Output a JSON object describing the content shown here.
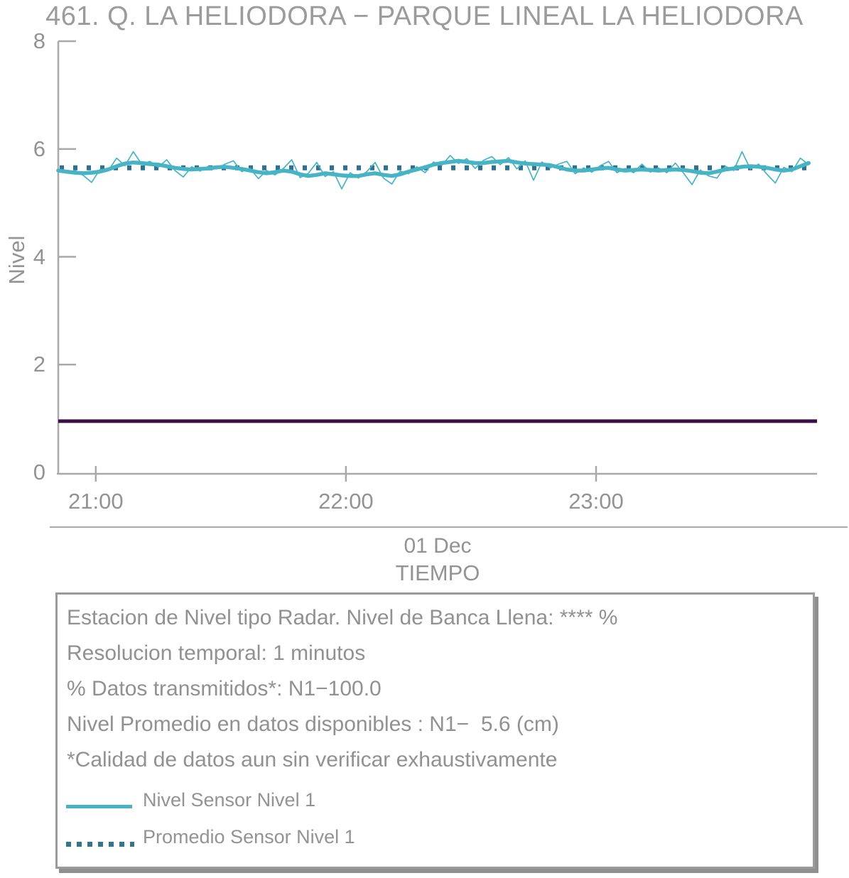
{
  "title": "461. Q. LA HELIODORA − PARQUE LINEAL LA HELIODORA",
  "axes": {
    "y_label": "Nivel",
    "x_label": "TIEMPO",
    "x_date_label": "01 Dec"
  },
  "legend": {
    "info_lines": [
      "Estacion de Nivel tipo Radar. Nivel de Banca Llena: **** %",
      "Resolucion temporal: 1 minutos",
      "% Datos transmitidos*: N1−100.0",
      "Nivel Promedio en datos disponibles : N1−  5.6 (cm)",
      "*Calidad de datos aun sin verificar exhaustivamente"
    ],
    "entries": [
      {
        "label": "Nivel Sensor Nivel 1",
        "style": "solid",
        "color": "#46b4c5"
      },
      {
        "label": "Promedio Sensor Nivel 1",
        "style": "dotted",
        "color": "#35748f"
      }
    ]
  },
  "chart_data": {
    "type": "line",
    "title": "461. Q. LA HELIODORA − PARQUE LINEAL LA HELIODORA",
    "xlabel": "TIEMPO",
    "x_sublabel": "01 Dec",
    "ylabel": "Nivel",
    "ylim": [
      0,
      8
    ],
    "y_ticks": [
      0,
      2,
      4,
      6,
      8
    ],
    "x_ticks": [
      {
        "label": "21:00",
        "minute": 9
      },
      {
        "label": "22:00",
        "minute": 69
      },
      {
        "label": "23:00",
        "minute": 129
      }
    ],
    "x_range_minutes": 182,
    "sample_step_minutes": 2,
    "grid": false,
    "legend_position": "bottom-box",
    "series": [
      {
        "name": "Nivel Sensor Nivel 1",
        "role": "raw",
        "style": "solid-thin",
        "color": "#46b4c5",
        "values": [
          5.62,
          5.55,
          5.6,
          5.51,
          5.38,
          5.62,
          5.6,
          5.83,
          5.69,
          5.95,
          5.72,
          5.77,
          5.66,
          5.8,
          5.6,
          5.48,
          5.67,
          5.59,
          5.68,
          5.63,
          5.72,
          5.78,
          5.58,
          5.64,
          5.45,
          5.6,
          5.52,
          5.64,
          5.8,
          5.47,
          5.55,
          5.75,
          5.49,
          5.58,
          5.26,
          5.56,
          5.46,
          5.58,
          5.75,
          5.46,
          5.35,
          5.59,
          5.54,
          5.67,
          5.56,
          5.76,
          5.7,
          5.88,
          5.73,
          5.82,
          5.64,
          5.79,
          5.86,
          5.71,
          5.84,
          5.63,
          5.78,
          5.42,
          5.76,
          5.65,
          5.72,
          5.77,
          5.54,
          5.65,
          5.57,
          5.69,
          5.77,
          5.56,
          5.64,
          5.56,
          5.72,
          5.57,
          5.65,
          5.56,
          5.74,
          5.55,
          5.34,
          5.61,
          5.5,
          5.46,
          5.68,
          5.6,
          5.95,
          5.63,
          5.72,
          5.53,
          5.37,
          5.66,
          5.58,
          5.83,
          5.71
        ]
      },
      {
        "name": "Nivel Sensor Nivel 1",
        "role": "smoothed",
        "style": "solid-thick",
        "color": "#46b4c5",
        "values": [
          5.6,
          5.58,
          5.56,
          5.55,
          5.56,
          5.58,
          5.62,
          5.68,
          5.73,
          5.75,
          5.74,
          5.72,
          5.71,
          5.68,
          5.65,
          5.63,
          5.62,
          5.63,
          5.64,
          5.66,
          5.67,
          5.65,
          5.63,
          5.6,
          5.57,
          5.55,
          5.57,
          5.6,
          5.58,
          5.53,
          5.5,
          5.52,
          5.55,
          5.53,
          5.51,
          5.5,
          5.5,
          5.53,
          5.55,
          5.52,
          5.5,
          5.53,
          5.58,
          5.62,
          5.66,
          5.71,
          5.74,
          5.76,
          5.78,
          5.76,
          5.74,
          5.74,
          5.76,
          5.77,
          5.78,
          5.75,
          5.73,
          5.72,
          5.71,
          5.7,
          5.66,
          5.62,
          5.6,
          5.6,
          5.62,
          5.64,
          5.65,
          5.62,
          5.6,
          5.61,
          5.62,
          5.61,
          5.6,
          5.61,
          5.62,
          5.61,
          5.59,
          5.56,
          5.55,
          5.58,
          5.62,
          5.64,
          5.67,
          5.68,
          5.67,
          5.65,
          5.62,
          5.6,
          5.62,
          5.68,
          5.74
        ]
      },
      {
        "name": "Promedio Sensor Nivel 1",
        "role": "mean",
        "style": "dotted",
        "color": "#31708f",
        "constant_value": 5.65
      }
    ],
    "reference_line": {
      "value": 0.95,
      "color": "#3e0d49"
    },
    "axis_color": "#a9a9a9"
  }
}
